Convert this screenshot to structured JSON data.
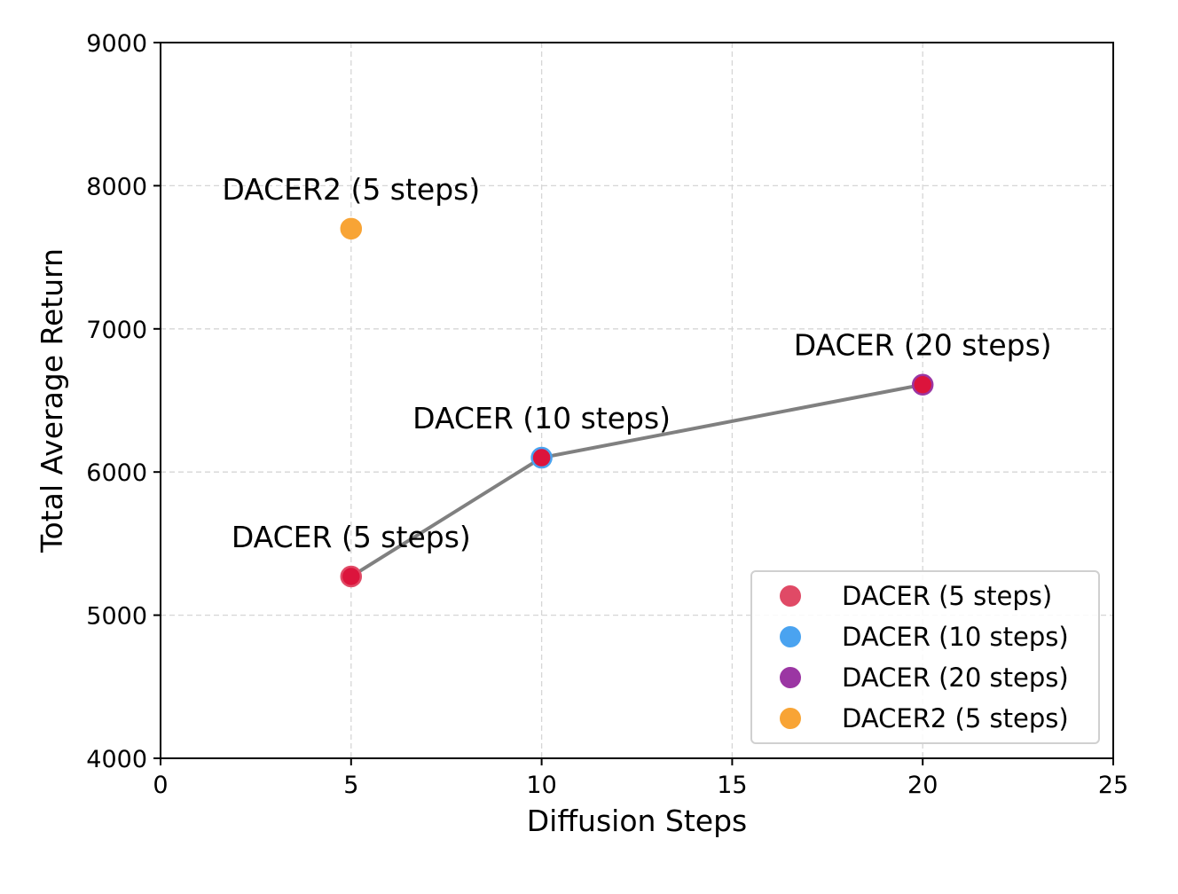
{
  "chart_data": {
    "type": "scatter",
    "title": "",
    "xlabel": "Diffusion Steps",
    "ylabel": "Total Average Return",
    "xlim": [
      0,
      25
    ],
    "ylim": [
      4000,
      9000
    ],
    "xticks": [
      "0",
      "5",
      "10",
      "15",
      "20",
      "25"
    ],
    "yticks": [
      "4000",
      "5000",
      "6000",
      "7000",
      "8000",
      "9000"
    ],
    "grid": true,
    "legend_position": "lower-right",
    "line": {
      "x": [
        5,
        10,
        20
      ],
      "y": [
        5270,
        6100,
        6610
      ],
      "color": "#808080"
    },
    "points": [
      {
        "name": "DACER (5 steps)",
        "x": 5,
        "y": 5270,
        "color": "#dc143c",
        "legend_color": "#e04a66",
        "edge": "#e04a66"
      },
      {
        "name": "DACER (10 steps)",
        "x": 10,
        "y": 6100,
        "color": "#dc143c",
        "legend_color": "#4aa3f0",
        "edge": "#4aa3f0"
      },
      {
        "name": "DACER (20 steps)",
        "x": 20,
        "y": 6610,
        "color": "#dc143c",
        "legend_color": "#9b36a3",
        "edge": "#9b36a3"
      },
      {
        "name": "DACER2 (5 steps)",
        "x": 5,
        "y": 7700,
        "color": "#f8a435",
        "legend_color": "#f8a435",
        "edge": "#f8a435"
      }
    ]
  }
}
